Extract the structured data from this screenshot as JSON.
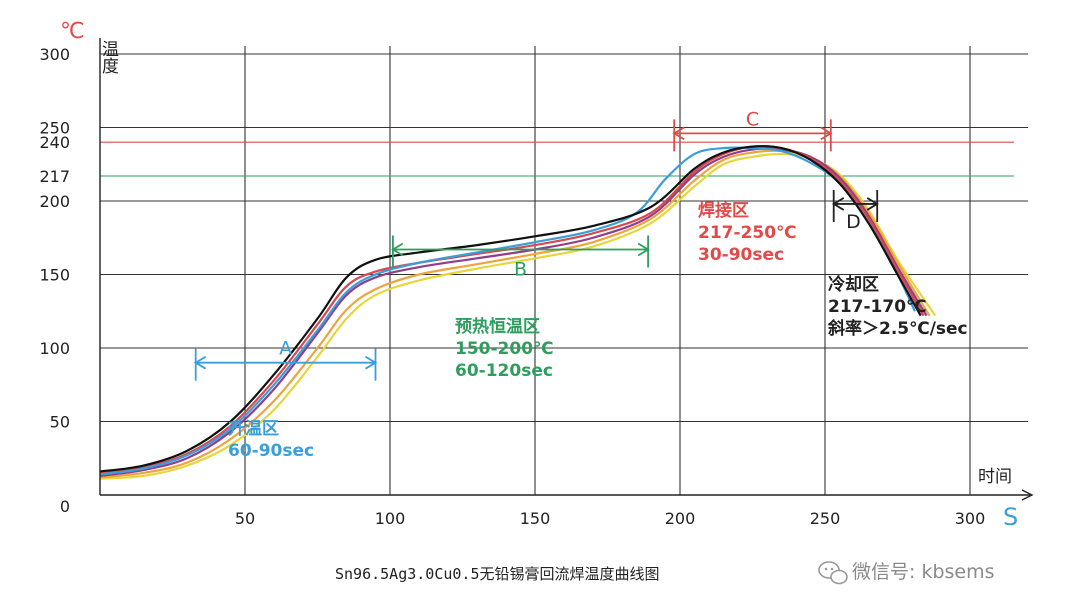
{
  "chart_data": {
    "type": "line",
    "title": "Sn96.5Ag3.0Cu0.5无铅锡膏回流焊温度曲线图",
    "y_unit": "℃",
    "ylabel": "温度",
    "xlabel": "时间",
    "x_unit": "S",
    "xlim": [
      0,
      320
    ],
    "ylim": [
      0,
      300
    ],
    "x_ticks": [
      "50",
      "100",
      "150",
      "200",
      "250",
      "300"
    ],
    "x_tick_values": [
      50,
      100,
      150,
      200,
      250,
      300
    ],
    "y_ticks": [
      "0",
      "50",
      "100",
      "150",
      "200",
      "250",
      "300"
    ],
    "y_tick_values": [
      0,
      50,
      100,
      150,
      200,
      250,
      300
    ],
    "reference_lines": [
      {
        "label": "240",
        "value": 240,
        "color": "#e24a4a"
      },
      {
        "label": "217",
        "value": 217,
        "color": "#2e9e5e"
      }
    ],
    "series": [
      {
        "name": "black",
        "color": "#111111",
        "x": [
          0,
          15,
          30,
          45,
          60,
          75,
          85,
          95,
          110,
          130,
          150,
          170,
          190,
          205,
          215,
          225,
          235,
          245,
          255,
          265,
          275,
          283
        ],
        "y": [
          16,
          20,
          30,
          50,
          82,
          120,
          148,
          160,
          165,
          170,
          176,
          183,
          196,
          222,
          233,
          237,
          236,
          228,
          212,
          185,
          150,
          122
        ]
      },
      {
        "name": "blue",
        "color": "#3a9fd8",
        "x": [
          0,
          15,
          30,
          45,
          60,
          75,
          85,
          95,
          110,
          130,
          150,
          170,
          185,
          195,
          205,
          215,
          225,
          235,
          245,
          255,
          265,
          275,
          281
        ],
        "y": [
          14,
          18,
          27,
          45,
          75,
          112,
          138,
          150,
          158,
          165,
          172,
          180,
          192,
          215,
          232,
          236,
          236,
          234,
          226,
          212,
          185,
          150,
          125
        ]
      },
      {
        "name": "red",
        "color": "#d9474f",
        "x": [
          0,
          15,
          30,
          45,
          60,
          75,
          85,
          95,
          110,
          130,
          150,
          170,
          190,
          205,
          215,
          225,
          235,
          245,
          255,
          265,
          275,
          284
        ],
        "y": [
          15,
          19,
          28,
          47,
          78,
          116,
          142,
          152,
          158,
          164,
          170,
          178,
          192,
          220,
          232,
          237,
          236,
          229,
          214,
          188,
          153,
          122
        ]
      },
      {
        "name": "purple",
        "color": "#8e3f8c",
        "x": [
          0,
          15,
          30,
          45,
          60,
          75,
          85,
          95,
          110,
          130,
          150,
          170,
          190,
          205,
          215,
          225,
          235,
          245,
          255,
          265,
          275,
          285
        ],
        "y": [
          13,
          17,
          25,
          43,
          72,
          110,
          136,
          148,
          155,
          161,
          167,
          175,
          190,
          218,
          230,
          235,
          235,
          230,
          216,
          190,
          155,
          122
        ]
      },
      {
        "name": "orange",
        "color": "#f0a33a",
        "x": [
          0,
          15,
          30,
          45,
          60,
          75,
          85,
          95,
          110,
          130,
          150,
          170,
          190,
          205,
          215,
          225,
          235,
          245,
          255,
          265,
          275,
          286
        ],
        "y": [
          12,
          15,
          22,
          38,
          64,
          100,
          126,
          140,
          150,
          157,
          164,
          172,
          188,
          214,
          228,
          233,
          234,
          230,
          217,
          192,
          158,
          122
        ]
      },
      {
        "name": "yellow",
        "color": "#e6d63a",
        "x": [
          0,
          15,
          30,
          45,
          60,
          75,
          85,
          95,
          110,
          130,
          150,
          170,
          190,
          205,
          215,
          225,
          235,
          245,
          255,
          265,
          275,
          288
        ],
        "y": [
          11,
          13,
          20,
          34,
          58,
          94,
          120,
          136,
          146,
          154,
          161,
          169,
          185,
          210,
          225,
          230,
          232,
          229,
          218,
          194,
          160,
          122
        ]
      }
    ],
    "zones": [
      {
        "id": "A",
        "x_start": 33,
        "x_end": 95,
        "y": 90,
        "label": "A",
        "color": "#3a9fd8",
        "text": [
          "升温区",
          "60-90sec"
        ]
      },
      {
        "id": "B",
        "x_start": 101,
        "x_end": 189,
        "y": 167,
        "label": "B",
        "color": "#2e9e5e",
        "text": [
          "预热恒温区",
          "150-200℃",
          "60-120sec"
        ]
      },
      {
        "id": "C",
        "x_start": 198,
        "x_end": 252,
        "y": 246,
        "label": "C",
        "color": "#e24a4a",
        "text": [
          "焊接区",
          "217-250℃",
          "30-90sec"
        ]
      },
      {
        "id": "D",
        "x_start": 253,
        "x_end": 268,
        "y": 198,
        "label": "D",
        "color": "#222222",
        "text": [
          "冷却区",
          "217-170℃",
          "斜率＞2.5℃/sec"
        ]
      }
    ]
  },
  "watermark": "微信号: kbsems"
}
